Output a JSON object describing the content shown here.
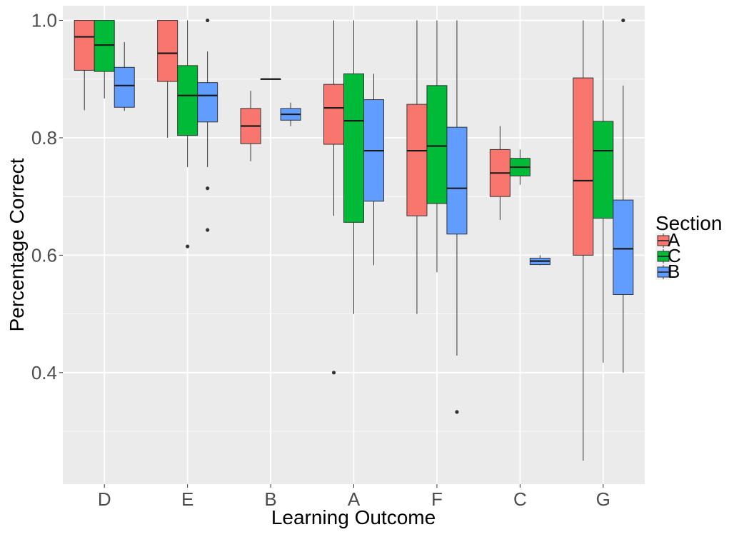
{
  "chart_data": {
    "type": "boxplot",
    "xlabel": "Learning Outcome",
    "ylabel": "Percentage Correct",
    "categories": [
      "D",
      "E",
      "B",
      "A",
      "F",
      "C",
      "G"
    ],
    "ylim": [
      0.21,
      1.025
    ],
    "y_ticks": [
      "0.4",
      "0.6",
      "0.8",
      "1.0"
    ],
    "grid": true,
    "legend": {
      "title": "Section",
      "position": "right",
      "entries": [
        {
          "label": "A",
          "color": "#F8766D"
        },
        {
          "label": "C",
          "color": "#00BA38"
        },
        {
          "label": "B",
          "color": "#619CFF"
        }
      ]
    },
    "series": [
      {
        "name": "A",
        "color": "#F8766D",
        "boxes": [
          {
            "category": "D",
            "min": 0.847,
            "q1": 0.915,
            "median": 0.972,
            "q3": 1.0,
            "max": 1.0,
            "outliers": []
          },
          {
            "category": "E",
            "min": 0.8,
            "q1": 0.896,
            "median": 0.944,
            "q3": 1.0,
            "max": 1.0,
            "outliers": []
          },
          {
            "category": "B",
            "min": 0.76,
            "q1": 0.79,
            "median": 0.82,
            "q3": 0.85,
            "max": 0.88,
            "outliers": []
          },
          {
            "category": "A",
            "min": 0.667,
            "q1": 0.789,
            "median": 0.851,
            "q3": 0.891,
            "max": 1.0,
            "outliers": [
              0.4
            ]
          },
          {
            "category": "F",
            "min": 0.5,
            "q1": 0.667,
            "median": 0.778,
            "q3": 0.857,
            "max": 1.0,
            "outliers": []
          },
          {
            "category": "C",
            "min": 0.66,
            "q1": 0.7,
            "median": 0.74,
            "q3": 0.78,
            "max": 0.82,
            "outliers": []
          },
          {
            "category": "G",
            "min": 0.25,
            "q1": 0.6,
            "median": 0.727,
            "q3": 0.902,
            "max": 1.0,
            "outliers": []
          }
        ]
      },
      {
        "name": "C",
        "color": "#00BA38",
        "boxes": [
          {
            "category": "D",
            "min": 0.867,
            "q1": 0.913,
            "median": 0.958,
            "q3": 1.0,
            "max": 1.0,
            "outliers": []
          },
          {
            "category": "E",
            "min": 0.75,
            "q1": 0.804,
            "median": 0.872,
            "q3": 0.923,
            "max": 1.0,
            "outliers": [
              0.615
            ]
          },
          {
            "category": "B",
            "min": 0.9,
            "q1": 0.9,
            "median": 0.9,
            "q3": 0.9,
            "max": 0.9,
            "outliers": []
          },
          {
            "category": "A",
            "min": 0.5,
            "q1": 0.656,
            "median": 0.829,
            "q3": 0.909,
            "max": 1.0,
            "outliers": []
          },
          {
            "category": "F",
            "min": 0.571,
            "q1": 0.688,
            "median": 0.786,
            "q3": 0.889,
            "max": 1.0,
            "outliers": []
          },
          {
            "category": "C",
            "min": 0.72,
            "q1": 0.735,
            "median": 0.75,
            "q3": 0.765,
            "max": 0.78,
            "outliers": []
          },
          {
            "category": "G",
            "min": 0.417,
            "q1": 0.663,
            "median": 0.778,
            "q3": 0.828,
            "max": 1.0,
            "outliers": []
          }
        ]
      },
      {
        "name": "B",
        "color": "#619CFF",
        "boxes": [
          {
            "category": "D",
            "min": 0.846,
            "q1": 0.852,
            "median": 0.889,
            "q3": 0.92,
            "max": 0.963,
            "outliers": []
          },
          {
            "category": "E",
            "min": 0.75,
            "q1": 0.827,
            "median": 0.872,
            "q3": 0.894,
            "max": 0.947,
            "outliers": [
              1.0,
              0.714,
              0.643
            ]
          },
          {
            "category": "B",
            "min": 0.82,
            "q1": 0.83,
            "median": 0.84,
            "q3": 0.85,
            "max": 0.86,
            "outliers": []
          },
          {
            "category": "A",
            "min": 0.583,
            "q1": 0.692,
            "median": 0.778,
            "q3": 0.865,
            "max": 0.909,
            "outliers": []
          },
          {
            "category": "F",
            "min": 0.429,
            "q1": 0.636,
            "median": 0.714,
            "q3": 0.818,
            "max": 1.0,
            "outliers": [
              0.333
            ]
          },
          {
            "category": "C",
            "min": 0.583,
            "q1": 0.584,
            "median": 0.59,
            "q3": 0.595,
            "max": 0.6,
            "outliers": []
          },
          {
            "category": "G",
            "min": 0.4,
            "q1": 0.533,
            "median": 0.611,
            "q3": 0.694,
            "max": 0.889,
            "outliers": [
              1.0
            ]
          }
        ]
      }
    ]
  }
}
